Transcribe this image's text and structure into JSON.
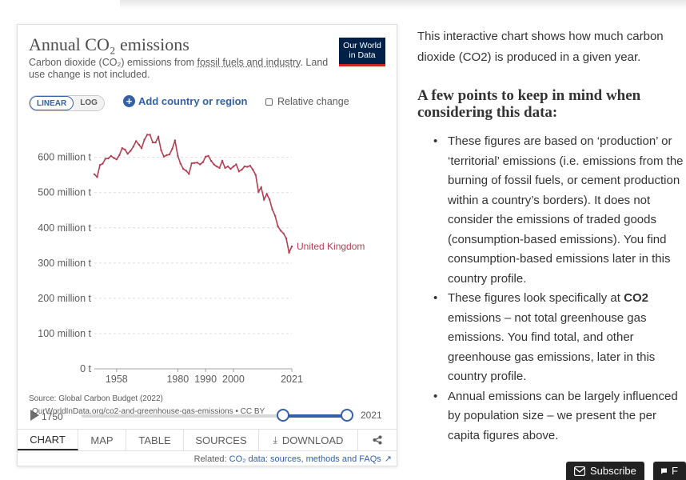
{
  "chart": {
    "title": "Annual CO₂ emissions",
    "subtitle_before": "Carbon dioxide (CO₂) emissions from ",
    "subtitle_link": "fossil fuels and industry",
    "subtitle_after": ". Land use change is not included.",
    "logo_line1": "Our World",
    "logo_line2": "in Data",
    "scale_linear": "LINEAR",
    "scale_log": "LOG",
    "add_country": "Add country or region",
    "relative_change": "Relative change",
    "source": "Source: Global Carbon Budget (2022)",
    "source_url": "OurWorldInData.org/co2-and-greenhouse-gas-emissions • CC BY",
    "timeline_start": "1750",
    "timeline_end": "2021",
    "tabs": [
      "CHART",
      "MAP",
      "TABLE",
      "SOURCES",
      "DOWNLOAD"
    ],
    "related_prefix": "Related: ",
    "related_link": "CO₂ data: sources, methods and FAQs"
  },
  "chart_data": {
    "type": "line",
    "title": "Annual CO₂ emissions",
    "ylabel_ticks": [
      "0 t",
      "100 million t",
      "200 million t",
      "300 million t",
      "400 million t",
      "500 million t",
      "600 million t"
    ],
    "y_ticks": [
      0,
      100,
      200,
      300,
      400,
      500,
      600
    ],
    "x_ticks": [
      1958,
      1980,
      1990,
      2000,
      2021
    ],
    "ylim": [
      0,
      690
    ],
    "xlim": [
      1950,
      2021
    ],
    "grid": true,
    "series": [
      {
        "name": "United Kingdom",
        "color": "#b13f51",
        "x": [
          1950,
          1951,
          1952,
          1953,
          1954,
          1955,
          1956,
          1957,
          1958,
          1959,
          1960,
          1961,
          1962,
          1963,
          1964,
          1965,
          1966,
          1967,
          1968,
          1969,
          1970,
          1971,
          1972,
          1973,
          1974,
          1975,
          1976,
          1977,
          1978,
          1979,
          1980,
          1981,
          1982,
          1983,
          1984,
          1985,
          1986,
          1987,
          1988,
          1989,
          1990,
          1991,
          1992,
          1993,
          1994,
          1995,
          1996,
          1997,
          1998,
          1999,
          2000,
          2001,
          2002,
          2003,
          2004,
          2005,
          2006,
          2007,
          2008,
          2009,
          2010,
          2011,
          2012,
          2013,
          2014,
          2015,
          2016,
          2017,
          2018,
          2019,
          2020,
          2021
        ],
        "y": [
          552,
          544,
          578,
          582,
          596,
          597,
          604,
          598,
          594,
          606,
          626,
          622,
          610,
          618,
          630,
          646,
          636,
          626,
          650,
          664,
          664,
          642,
          642,
          658,
          620,
          602,
          606,
          608,
          624,
          648,
          604,
          582,
          567,
          562,
          553,
          583,
          584,
          585,
          580,
          586,
          602,
          604,
          590,
          580,
          574,
          570,
          590,
          570,
          574,
          567,
          574,
          580,
          560,
          565,
          574,
          573,
          576,
          565,
          550,
          502,
          515,
          480,
          496,
          480,
          452,
          434,
          404,
          392,
          384,
          370,
          330,
          347
        ]
      }
    ]
  },
  "article": {
    "intro": "This interactive chart shows how much carbon dioxide (CO2) is produced in a given year.",
    "heading": "A few points to keep in mind when considering this data:",
    "bullet1": "These figures are based on ‘production’ or ‘territorial’ emissions (i.e. emissions from the burning of fossil fuels, or cement production within a country’s borders). It does not consider the emissions of traded goods (consumption-based emissions). You find consumption-based emissions later in this country profile.",
    "bullet2_before": "These figures look specifically at ",
    "bullet2_bold": "CO2",
    "bullet2_after": " emissions – not total greenhouse gas emissions. You find total, and other greenhouse gas emissions, later in this country profile.",
    "bullet3": "Annual emissions can be largely influenced by population size – we present the per capita figures above."
  },
  "footer": {
    "subscribe": "Subscribe",
    "feedback": "F"
  },
  "icons": {
    "plus": "plus-circle-icon",
    "play": "play-icon",
    "download": "download-icon",
    "share": "share-icon",
    "external": "external-link-icon",
    "subscribe": "envelope-icon",
    "feedback": "chat-icon"
  }
}
